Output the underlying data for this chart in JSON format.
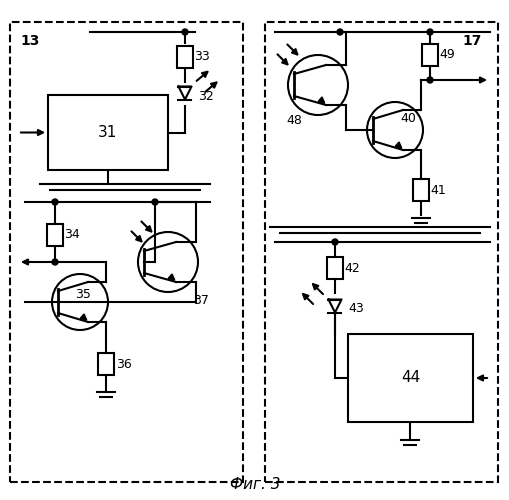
{
  "title": "Фиг. 3",
  "bg_color": "#ffffff",
  "lw": 1.5,
  "label_13": "13",
  "label_17": "17",
  "label_31": "31",
  "label_32": "32",
  "label_33": "33",
  "label_34": "34",
  "label_35": "35",
  "label_36": "36",
  "label_37": "37",
  "label_40": "40",
  "label_41": "41",
  "label_42": "42",
  "label_43": "43",
  "label_44": "44",
  "label_48": "48",
  "label_49": "49"
}
